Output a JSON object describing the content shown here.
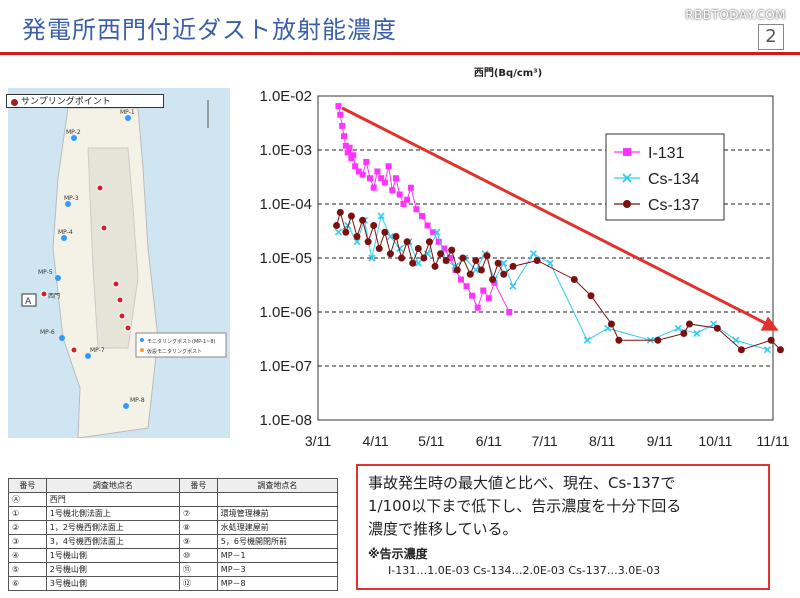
{
  "header": {
    "title": "発電所西門付近ダスト放射能濃度",
    "watermark": "RBBTODAY.COM",
    "page_number": "2"
  },
  "map": {
    "legend_label": "サンプリングポイント",
    "legend_dot_color": "#a02020",
    "label_mp1": "MP-1",
    "label_mp2": "MP-2",
    "label_mp3": "MP-3",
    "label_mp4": "MP-4",
    "label_mp5": "MP-5",
    "label_mp6": "MP-6",
    "label_mp7": "MP-7",
    "label_mp8": "MP-8",
    "label_west_gate": "西門",
    "label_a": "A",
    "legend_monitoring": "モニタリングポスト(MP-1~8)",
    "legend_temp": "仮設モニタリングポスト"
  },
  "chart_data": {
    "type": "scatter",
    "title": "西門(Bq/cm³)",
    "xlabel": "",
    "ylabel": "",
    "scale": "log",
    "x_ticks": [
      "3/11",
      "4/11",
      "5/11",
      "6/11",
      "7/11",
      "8/11",
      "9/11",
      "10/11",
      "11/11"
    ],
    "y_ticks": [
      "1.0E-02",
      "1.0E-03",
      "1.0E-04",
      "1.0E-05",
      "1.0E-06",
      "1.0E-07",
      "1.0E-08"
    ],
    "ylim": [
      1e-08,
      0.01
    ],
    "grid": "horizontal dashed",
    "legend_position": "top-right",
    "series": [
      {
        "name": "I-131",
        "color": "#ff33ff",
        "marker": "square",
        "points": [
          [
            "2011-03-22",
            0.0065
          ],
          [
            "2011-03-23",
            0.0045
          ],
          [
            "2011-03-24",
            0.0028
          ],
          [
            "2011-03-25",
            0.0018
          ],
          [
            "2011-03-26",
            0.0012
          ],
          [
            "2011-03-27",
            0.0009
          ],
          [
            "2011-03-28",
            0.0011
          ],
          [
            "2011-03-29",
            0.0007
          ],
          [
            "2011-03-30",
            0.0008
          ],
          [
            "2011-03-31",
            0.0005
          ],
          [
            "2011-04-02",
            0.0004
          ],
          [
            "2011-04-04",
            0.00035
          ],
          [
            "2011-04-06",
            0.0006
          ],
          [
            "2011-04-08",
            0.0003
          ],
          [
            "2011-04-10",
            0.0002
          ],
          [
            "2011-04-12",
            0.0004
          ],
          [
            "2011-04-14",
            0.0003
          ],
          [
            "2011-04-16",
            0.00025
          ],
          [
            "2011-04-18",
            0.0005
          ],
          [
            "2011-04-20",
            0.00018
          ],
          [
            "2011-04-22",
            0.0003
          ],
          [
            "2011-04-24",
            0.00015
          ],
          [
            "2011-04-26",
            0.0001
          ],
          [
            "2011-04-28",
            0.00012
          ],
          [
            "2011-04-30",
            0.0002
          ],
          [
            "2011-05-03",
            8e-05
          ],
          [
            "2011-05-06",
            6e-05
          ],
          [
            "2011-05-09",
            4e-05
          ],
          [
            "2011-05-12",
            3e-05
          ],
          [
            "2011-05-15",
            2e-05
          ],
          [
            "2011-05-18",
            1.5e-05
          ],
          [
            "2011-05-21",
            1e-05
          ],
          [
            "2011-05-24",
            6e-06
          ],
          [
            "2011-05-27",
            4e-06
          ],
          [
            "2011-05-30",
            3e-06
          ],
          [
            "2011-06-02",
            2e-06
          ],
          [
            "2011-06-05",
            1.2e-06
          ],
          [
            "2011-06-08",
            2.5e-06
          ],
          [
            "2011-06-11",
            1.8e-06
          ],
          [
            "2011-06-14",
            3.5e-06
          ],
          [
            "2011-06-22",
            1e-06
          ]
        ]
      },
      {
        "name": "Cs-134",
        "color": "#33ccee",
        "marker": "x",
        "points": [
          [
            "2011-03-22",
            3e-05
          ],
          [
            "2011-03-27",
            4e-05
          ],
          [
            "2011-04-01",
            2e-05
          ],
          [
            "2011-04-05",
            5e-05
          ],
          [
            "2011-04-09",
            1e-05
          ],
          [
            "2011-04-14",
            6e-05
          ],
          [
            "2011-04-19",
            2.5e-05
          ],
          [
            "2011-04-24",
            1.5e-05
          ],
          [
            "2011-04-29",
            2e-05
          ],
          [
            "2011-05-04",
            8e-06
          ],
          [
            "2011-05-09",
            1.2e-05
          ],
          [
            "2011-05-14",
            3e-05
          ],
          [
            "2011-05-19",
            9e-06
          ],
          [
            "2011-05-24",
            7e-06
          ],
          [
            "2011-05-29",
            1e-05
          ],
          [
            "2011-06-04",
            6e-06
          ],
          [
            "2011-06-09",
            1.2e-05
          ],
          [
            "2011-06-14",
            4e-06
          ],
          [
            "2011-06-19",
            8e-06
          ],
          [
            "2011-06-24",
            3e-06
          ],
          [
            "2011-07-05",
            1.2e-05
          ],
          [
            "2011-07-14",
            8e-06
          ],
          [
            "2011-08-03",
            3e-07
          ],
          [
            "2011-08-14",
            5e-07
          ],
          [
            "2011-09-06",
            3e-07
          ],
          [
            "2011-09-21",
            5e-07
          ],
          [
            "2011-10-01",
            4e-07
          ],
          [
            "2011-10-10",
            6e-07
          ],
          [
            "2011-10-22",
            3e-07
          ],
          [
            "2011-11-08",
            2e-07
          ]
        ]
      },
      {
        "name": "Cs-137",
        "color": "#7a1010",
        "marker": "circle",
        "points": [
          [
            "2011-03-21",
            4e-05
          ],
          [
            "2011-03-23",
            7e-05
          ],
          [
            "2011-03-26",
            3e-05
          ],
          [
            "2011-03-29",
            6e-05
          ],
          [
            "2011-04-01",
            2.5e-05
          ],
          [
            "2011-04-04",
            5e-05
          ],
          [
            "2011-04-07",
            2e-05
          ],
          [
            "2011-04-10",
            4e-05
          ],
          [
            "2011-04-13",
            1.5e-05
          ],
          [
            "2011-04-16",
            3e-05
          ],
          [
            "2011-04-19",
            1.2e-05
          ],
          [
            "2011-04-22",
            2.5e-05
          ],
          [
            "2011-04-25",
            1e-05
          ],
          [
            "2011-04-28",
            2e-05
          ],
          [
            "2011-05-01",
            8e-06
          ],
          [
            "2011-05-04",
            1.5e-05
          ],
          [
            "2011-05-07",
            1e-05
          ],
          [
            "2011-05-10",
            2e-05
          ],
          [
            "2011-05-13",
            7e-06
          ],
          [
            "2011-05-16",
            1.2e-05
          ],
          [
            "2011-05-19",
            9e-06
          ],
          [
            "2011-05-22",
            1.4e-05
          ],
          [
            "2011-05-25",
            6e-06
          ],
          [
            "2011-05-28",
            1e-05
          ],
          [
            "2011-06-01",
            5e-06
          ],
          [
            "2011-06-04",
            9e-06
          ],
          [
            "2011-06-07",
            6e-06
          ],
          [
            "2011-06-10",
            1.1e-05
          ],
          [
            "2011-06-13",
            4e-06
          ],
          [
            "2011-06-16",
            8e-06
          ],
          [
            "2011-06-19",
            5e-06
          ],
          [
            "2011-06-24",
            7e-06
          ],
          [
            "2011-07-07",
            9e-06
          ],
          [
            "2011-07-27",
            4e-06
          ],
          [
            "2011-08-05",
            2e-06
          ],
          [
            "2011-08-16",
            6e-07
          ],
          [
            "2011-08-20",
            3e-07
          ],
          [
            "2011-09-10",
            3e-07
          ],
          [
            "2011-09-24",
            4e-07
          ],
          [
            "2011-09-27",
            6e-07
          ],
          [
            "2011-10-12",
            5e-07
          ],
          [
            "2011-10-25",
            2e-07
          ],
          [
            "2011-11-10",
            3e-07
          ],
          [
            "2011-11-15",
            2e-07
          ]
        ]
      }
    ],
    "trend_arrow": {
      "color": "#e0322e",
      "from": [
        "2011-03-24",
        0.006
      ],
      "to": [
        "2011-11-14",
        4.5e-07
      ]
    }
  },
  "table": {
    "headers": [
      "番号",
      "調査地点名",
      "番号",
      "調査地点名"
    ],
    "rows": [
      [
        "Ⓐ",
        "西門",
        "",
        ""
      ],
      [
        "①",
        "1号機北側法面上",
        "⑦",
        "環境管理棟前"
      ],
      [
        "②",
        "1，2号機西側法面上",
        "⑧",
        "水処理建屋前"
      ],
      [
        "③",
        "3，4号機西側法面上",
        "⑨",
        "5，6号機開閉所前"
      ],
      [
        "④",
        "1号機山側",
        "⑩",
        "MP－1"
      ],
      [
        "⑤",
        "2号機山側",
        "⑪",
        "MP－3"
      ],
      [
        "⑥",
        "3号機山側",
        "⑫",
        "MP－8"
      ]
    ]
  },
  "note": {
    "line1": "事故発生時の最大値と比べ、現在、Cs-137で",
    "line2": "1/100以下まで低下し、告示濃度を十分下回る",
    "line3": "濃度で推移している。",
    "sub_title": "※告示濃度",
    "sub_line": "I-131…1.0E-03  Cs-134…2.0E-03  Cs-137…3.0E-03"
  }
}
